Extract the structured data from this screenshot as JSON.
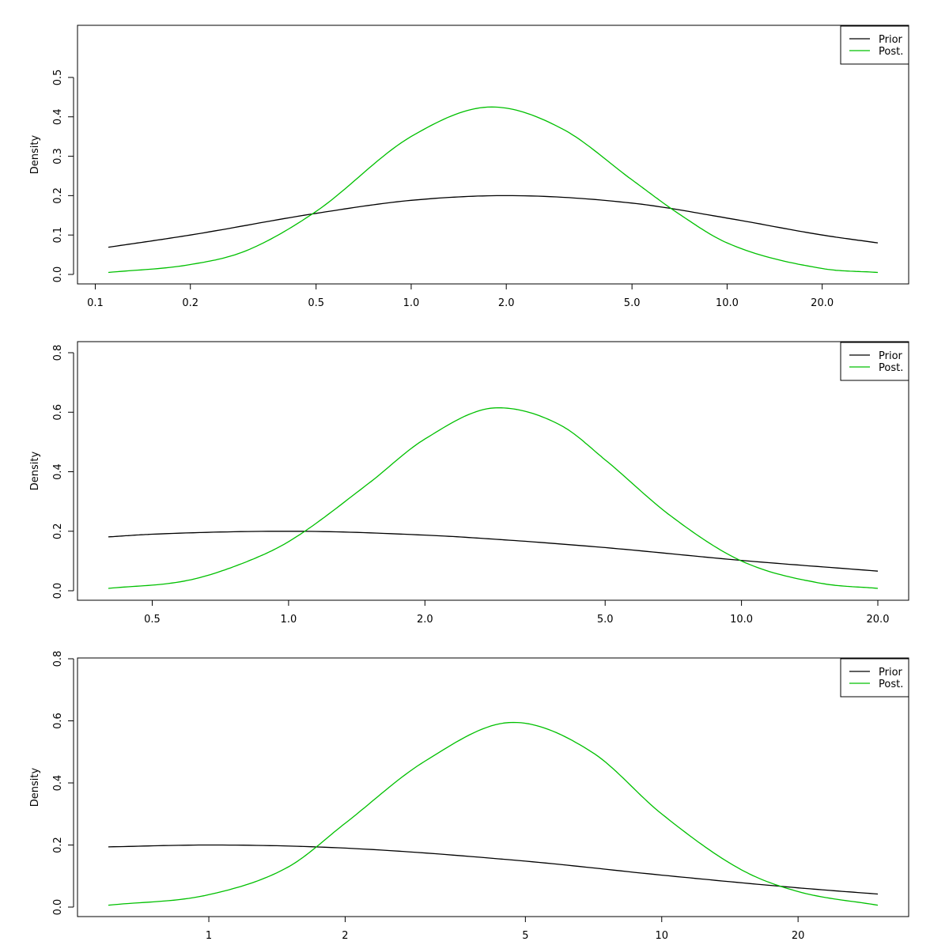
{
  "chart_data": [
    {
      "type": "line",
      "x_scale": "log",
      "xlim": [
        0.1,
        30
      ],
      "ylim": [
        0,
        0.55
      ],
      "xlabel": "",
      "ylabel": "Density",
      "xticks": [
        "0.1",
        "0.2",
        "0.5",
        "1.0",
        "2.0",
        "5.0",
        "10.0",
        "20.0"
      ],
      "yticks": [
        "0.0",
        "0.1",
        "0.2",
        "0.3",
        "0.4",
        "0.5"
      ],
      "legend": {
        "position": "top-right",
        "entries": [
          "Prior",
          "Post."
        ]
      },
      "series": [
        {
          "name": "Prior",
          "color": "#000000",
          "x": [
            0.11,
            0.2,
            0.5,
            1.0,
            2.0,
            5.0,
            10.0,
            20.0,
            30.0
          ],
          "y": [
            0.069,
            0.1,
            0.155,
            0.188,
            0.2,
            0.181,
            0.143,
            0.1,
            0.08
          ]
        },
        {
          "name": "Post.",
          "color": "#00c000",
          "x": [
            0.11,
            0.2,
            0.3,
            0.5,
            1.0,
            1.8,
            3.0,
            5.0,
            7.0,
            10.0,
            20.0,
            30.0
          ],
          "y": [
            0.005,
            0.025,
            0.06,
            0.16,
            0.35,
            0.425,
            0.37,
            0.24,
            0.155,
            0.08,
            0.015,
            0.005
          ]
        }
      ]
    },
    {
      "type": "line",
      "x_scale": "log",
      "xlim": [
        0.4,
        21
      ],
      "ylim": [
        0,
        0.8
      ],
      "xlabel": "",
      "ylabel": "Density",
      "xticks": [
        "0.5",
        "1.0",
        "2.0",
        "5.0",
        "10.0",
        "20.0"
      ],
      "yticks": [
        "0.0",
        "0.2",
        "0.4",
        "0.6",
        "0.8"
      ],
      "legend": {
        "position": "top-right",
        "entries": [
          "Prior",
          "Post."
        ]
      },
      "series": [
        {
          "name": "Prior",
          "color": "#000000",
          "x": [
            0.4,
            0.5,
            1.0,
            2.0,
            3.0,
            5.0,
            10.0,
            20.0
          ],
          "y": [
            0.181,
            0.19,
            0.2,
            0.187,
            0.171,
            0.145,
            0.102,
            0.066
          ]
        },
        {
          "name": "Post.",
          "color": "#00c000",
          "x": [
            0.4,
            0.6,
            0.8,
            1.0,
            1.5,
            2.0,
            2.9,
            4.0,
            5.0,
            7.0,
            10.0,
            15.0,
            20.0
          ],
          "y": [
            0.008,
            0.035,
            0.095,
            0.165,
            0.36,
            0.51,
            0.615,
            0.555,
            0.44,
            0.25,
            0.1,
            0.025,
            0.008
          ]
        }
      ]
    },
    {
      "type": "line",
      "x_scale": "log",
      "xlim": [
        0.5,
        32
      ],
      "ylim": [
        0,
        0.8
      ],
      "xlabel": "",
      "ylabel": "Density",
      "xticks": [
        "1",
        "2",
        "5",
        "10",
        "20"
      ],
      "yticks": [
        "0.0",
        "0.2",
        "0.4",
        "0.6",
        "0.8"
      ],
      "legend": {
        "position": "top-right",
        "entries": [
          "Prior",
          "Post."
        ]
      },
      "series": [
        {
          "name": "Prior",
          "color": "#000000",
          "x": [
            0.6,
            1.0,
            2.0,
            5.0,
            10.0,
            20.0,
            30.0
          ],
          "y": [
            0.194,
            0.2,
            0.19,
            0.148,
            0.103,
            0.062,
            0.042
          ]
        },
        {
          "name": "Post.",
          "color": "#00c000",
          "x": [
            0.6,
            1.0,
            1.5,
            2.0,
            3.0,
            4.7,
            7.0,
            10.0,
            15.0,
            20.0,
            30.0
          ],
          "y": [
            0.006,
            0.04,
            0.13,
            0.27,
            0.47,
            0.595,
            0.5,
            0.3,
            0.12,
            0.05,
            0.006
          ]
        }
      ]
    }
  ]
}
